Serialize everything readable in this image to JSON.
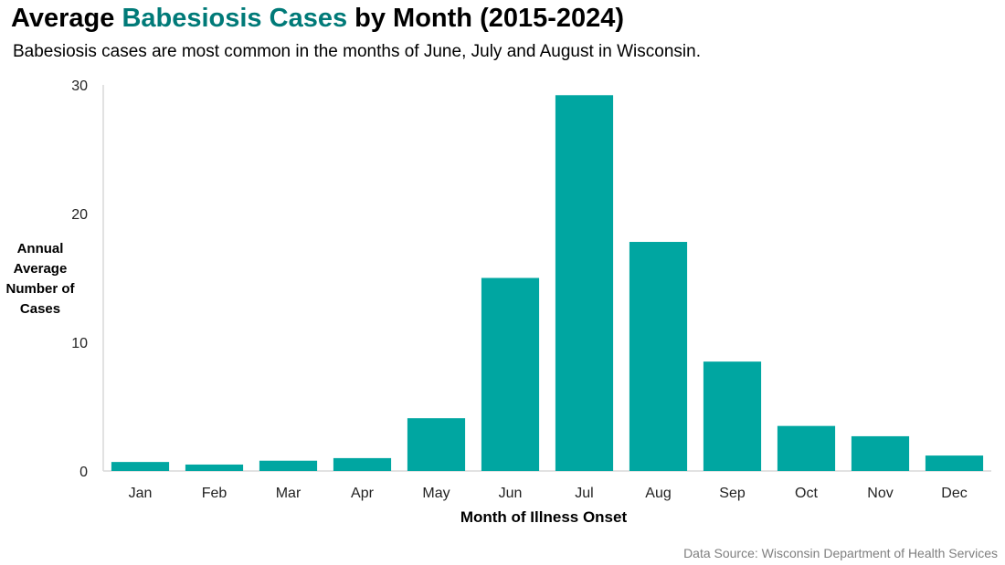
{
  "title": {
    "prefix": "Average ",
    "highlight": "Babesiosis Cases",
    "suffix": " by Month (2015-2024)"
  },
  "subtitle": "Babesiosis cases are most common in the months of June, July and August in Wisconsin.",
  "source": "Data Source: Wisconsin Department of Health Services",
  "colors": {
    "bar": "#00a6a1",
    "highlight": "#007a78"
  },
  "chart_data": {
    "type": "bar",
    "title": "Average Babesiosis Cases by Month (2015-2024)",
    "xlabel": "Month of Illness Onset",
    "ylabel": "Annual Average Number of Cases",
    "categories": [
      "Jan",
      "Feb",
      "Mar",
      "Apr",
      "May",
      "Jun",
      "Jul",
      "Aug",
      "Sep",
      "Oct",
      "Nov",
      "Dec"
    ],
    "values": [
      0.7,
      0.5,
      0.8,
      1.0,
      4.1,
      15.0,
      29.2,
      17.8,
      8.5,
      3.5,
      2.7,
      1.2
    ],
    "ylim": [
      0,
      30
    ],
    "yticks": [
      0,
      10,
      20,
      30
    ],
    "grid": false
  }
}
